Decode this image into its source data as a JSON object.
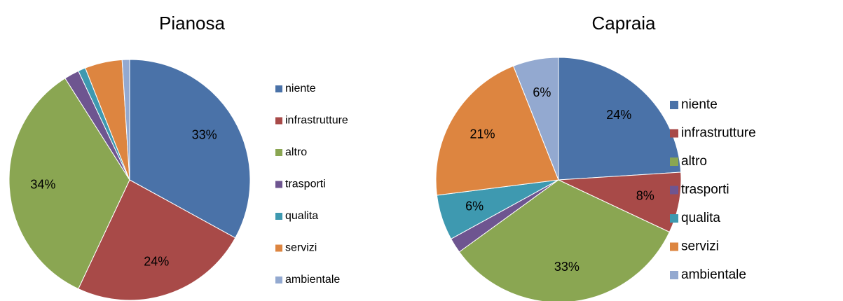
{
  "chart_data": [
    {
      "type": "pie",
      "title": "Pianosa",
      "categories": [
        "niente",
        "infrastrutture",
        "altro",
        "trasporti",
        "qualita",
        "servizi",
        "ambientale"
      ],
      "values": [
        33,
        24,
        34,
        2,
        1,
        5,
        1
      ],
      "value_labels": [
        "33%",
        "24%",
        "34%",
        null,
        null,
        null,
        null
      ],
      "colors": [
        "#4a72a8",
        "#a84a48",
        "#8aa652",
        "#6e5590",
        "#3e99b0",
        "#dd8540",
        "#93a9d0"
      ],
      "legend": "right"
    },
    {
      "type": "pie",
      "title": "Capraia",
      "categories": [
        "niente",
        "infrastrutture",
        "altro",
        "trasporti",
        "qualita",
        "servizi",
        "ambientale"
      ],
      "values": [
        24,
        8,
        33,
        2,
        6,
        21,
        6
      ],
      "value_labels": [
        "24%",
        "8%",
        "33%",
        null,
        "6%",
        "21%",
        "6%"
      ],
      "colors": [
        "#4a72a8",
        "#a84a48",
        "#8aa652",
        "#6e5590",
        "#3e99b0",
        "#dd8540",
        "#93a9d0"
      ],
      "legend": "right"
    }
  ]
}
